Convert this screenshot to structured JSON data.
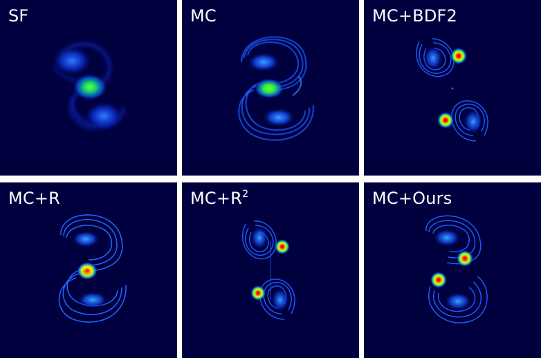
{
  "panels": [
    {
      "id": "sf",
      "label": "SF",
      "sup": ""
    },
    {
      "id": "mc",
      "label": "MC",
      "sup": ""
    },
    {
      "id": "mc-bdf2",
      "label": "MC+BDF2",
      "sup": ""
    },
    {
      "id": "mc-r",
      "label": "MC+R",
      "sup": ""
    },
    {
      "id": "mc-r2",
      "label": "MC+R",
      "sup": "2"
    },
    {
      "id": "mc-ours",
      "label": "MC+Ours",
      "sup": ""
    }
  ],
  "colors": {
    "background": "#00003f",
    "separator": "#ffffff",
    "low": "#0a2fd0",
    "mid": "#1e8cff",
    "high_green": "#33ff33",
    "high_yellow": "#ffee00",
    "peak_red": "#dd0000"
  }
}
